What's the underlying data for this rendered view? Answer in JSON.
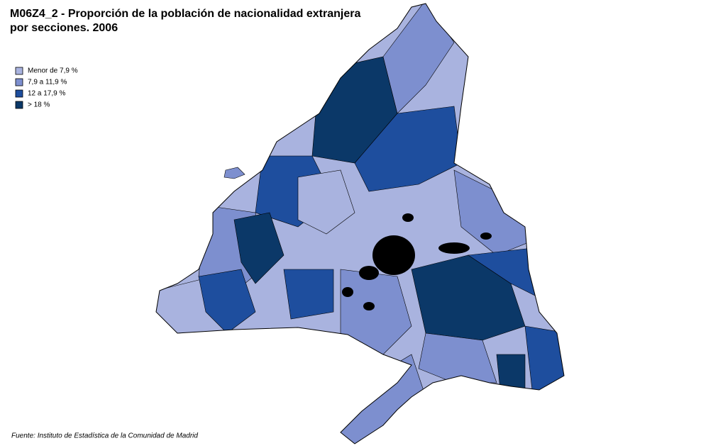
{
  "title_lines": [
    "M06Z4_2 - Proporción de la población de nacionalidad extranjera",
    "por secciones. 2006"
  ],
  "legend": {
    "items": [
      {
        "label": "Menor de 7,9 %",
        "color": "#a9b3df"
      },
      {
        "label": "7,9 a 11,9 %",
        "color": "#7d8fcf"
      },
      {
        "label": "12 a 17,9 %",
        "color": "#1e4e9e"
      },
      {
        "label": "> 18 %",
        "color": "#0b3868"
      }
    ]
  },
  "source": "Fuente: Instituto de Estadística de la Comunidad de Madrid"
}
